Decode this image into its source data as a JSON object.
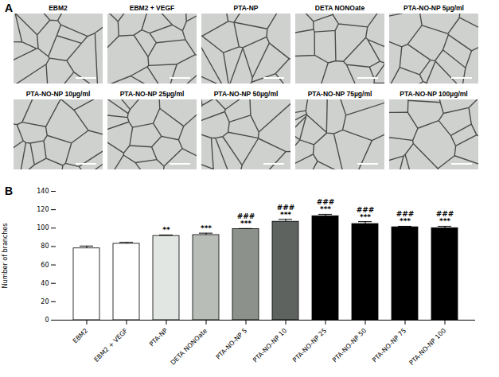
{
  "panel_a": {
    "label": "A",
    "images": [
      "EBM2",
      "EBM2 + VEGF",
      "PTA-NP",
      "DETA NONOate",
      "PTA-NO-NP 5µg/ml",
      "PTA-NO-NP 10µg/ml",
      "PTA-NO-NP 25µg/ml",
      "PTA-NO-NP 50µg/ml",
      "PTA-NO-NP 75µg/ml",
      "PTA-NO-NP 100µg/ml"
    ]
  },
  "chart_data": {
    "type": "bar",
    "panel_label": "B",
    "categories": [
      "EBM2",
      "EBM2 + VEGF",
      "PTA-NP",
      "DETA NONOate",
      "PTA-NO-NP 5",
      "PTA-NO-NP 10",
      "PTA-NO-NP 25",
      "PTA-NO-NP 50",
      "PTA-NO-NP 75",
      "PTA-NO-NP 100"
    ],
    "values": [
      78,
      83,
      91.5,
      92.5,
      99,
      107,
      113,
      104.5,
      101,
      100
    ],
    "error": [
      2.5,
      1.5,
      1,
      2,
      0.5,
      2.5,
      2,
      2.5,
      1,
      2
    ],
    "colors": [
      "#ffffff",
      "#ffffff",
      "#e2e6e2",
      "#b8bdb8",
      "#8c918c",
      "#5f635f",
      "#000000",
      "#000000",
      "#000000",
      "#000000"
    ],
    "significance": {
      "stars": [
        null,
        null,
        "**",
        "***",
        "***",
        "***",
        "***",
        "***",
        "***",
        "***"
      ],
      "hashes": [
        null,
        null,
        null,
        null,
        "###",
        "###",
        "###",
        "###",
        "###",
        "###"
      ]
    },
    "ylabel": "Number of branches",
    "ylim": [
      0,
      140
    ],
    "yticks": [
      0,
      20,
      40,
      60,
      80,
      100,
      120,
      140
    ],
    "grid": false
  }
}
